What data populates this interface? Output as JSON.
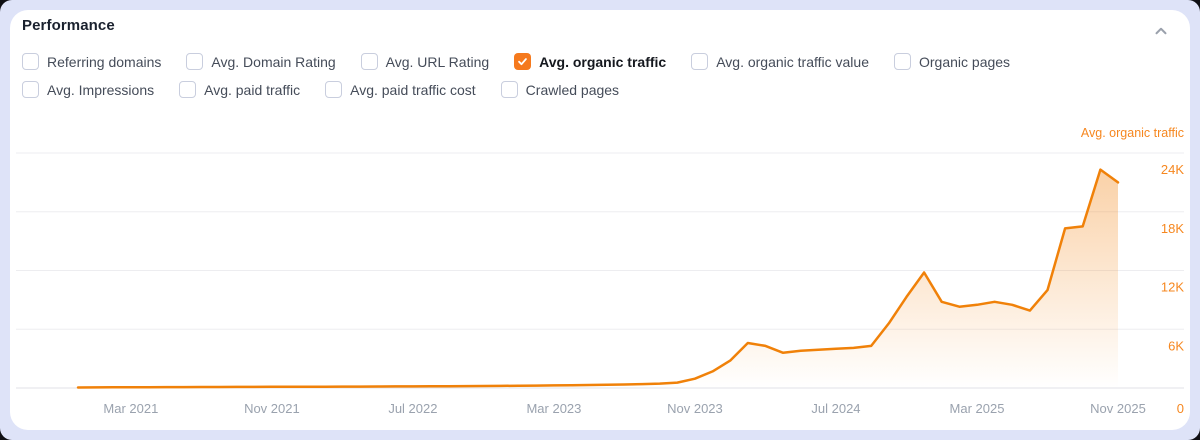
{
  "header": {
    "title": "Performance",
    "collapse_icon": "chevron-up"
  },
  "metrics": {
    "row1": [
      {
        "label": "Referring domains",
        "checked": false
      },
      {
        "label": "Avg. Domain Rating",
        "checked": false
      },
      {
        "label": "Avg. URL Rating",
        "checked": false
      },
      {
        "label": "Avg. organic traffic",
        "checked": true
      },
      {
        "label": "Avg. organic traffic value",
        "checked": false
      },
      {
        "label": "Organic pages",
        "checked": false
      }
    ],
    "row2": [
      {
        "label": "Avg. Impressions",
        "checked": false
      },
      {
        "label": "Avg. paid traffic",
        "checked": false
      },
      {
        "label": "Avg. paid traffic cost",
        "checked": false
      },
      {
        "label": "Crawled pages",
        "checked": false
      }
    ]
  },
  "chart_data": {
    "type": "area",
    "title": "",
    "series_label": "Avg. organic traffic",
    "interval": "monthly",
    "start_month": "Dec 2020",
    "end_month": "Nov 2025",
    "ylim": [
      0,
      24000
    ],
    "grid": "horizontal",
    "legend_position": "top-right",
    "y_ticks": [
      {
        "value": 24000,
        "label": "24K"
      },
      {
        "value": 18000,
        "label": "18K"
      },
      {
        "value": 12000,
        "label": "12K"
      },
      {
        "value": 6000,
        "label": "6K"
      },
      {
        "value": 0,
        "label": "0"
      }
    ],
    "x_ticks": [
      {
        "month_index": 3,
        "label": "Mar 2021"
      },
      {
        "month_index": 11,
        "label": "Nov 2021"
      },
      {
        "month_index": 19,
        "label": "Jul 2022"
      },
      {
        "month_index": 27,
        "label": "Mar 2023"
      },
      {
        "month_index": 35,
        "label": "Nov 2023"
      },
      {
        "month_index": 43,
        "label": "Jul 2024"
      },
      {
        "month_index": 51,
        "label": "Mar 2025"
      },
      {
        "month_index": 59,
        "label": "Nov 2025"
      }
    ],
    "values": [
      50,
      60,
      70,
      80,
      80,
      90,
      90,
      100,
      100,
      110,
      110,
      120,
      120,
      130,
      130,
      140,
      140,
      150,
      160,
      160,
      170,
      180,
      190,
      200,
      210,
      230,
      250,
      270,
      290,
      310,
      330,
      360,
      400,
      450,
      550,
      950,
      1700,
      2800,
      4600,
      4300,
      3600,
      3800,
      3900,
      4000,
      4100,
      4300,
      6600,
      9300,
      11800,
      8800,
      8300,
      8500,
      8800,
      8500,
      7900,
      10000,
      16300,
      16500,
      22300,
      21000
    ],
    "colors": {
      "line": "#f08109",
      "area_fill_top": "#f3922f",
      "y_axis_text": "#f6871f",
      "x_axis_text": "#9aa2ae",
      "gridline": "#ededf0",
      "baseline": "#e1e2e7",
      "checkbox_checked": "#f5791d",
      "panel_bg": "#dee3f8",
      "card_bg": "#ffffff"
    }
  }
}
